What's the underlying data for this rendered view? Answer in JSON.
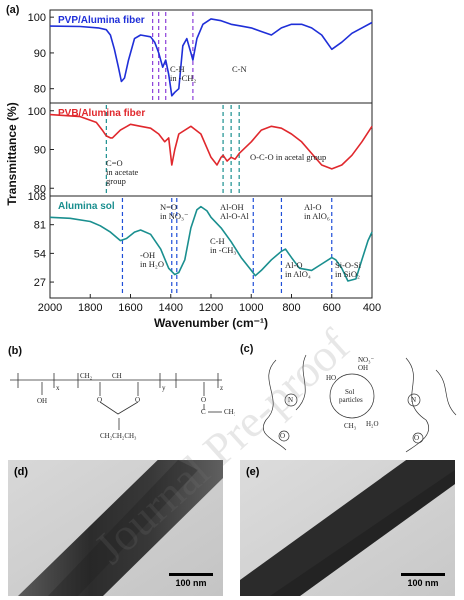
{
  "chart_data": [
    {
      "type": "line",
      "panel": "(a)",
      "xlabel": "Wavenumber (cm⁻¹)",
      "ylabel": "Transmittance (%)",
      "xlim": [
        2000,
        400
      ],
      "x_ticks": [
        2000,
        1800,
        1600,
        1400,
        1200,
        1000,
        800,
        600,
        400
      ],
      "subplots": [
        {
          "name": "PVP/Alumina fiber",
          "color": "#1f2fd8",
          "ylim": [
            76,
            102
          ],
          "y_ticks": [
            80,
            90,
            100
          ],
          "x": [
            2000,
            1850,
            1760,
            1720,
            1700,
            1680,
            1660,
            1645,
            1630,
            1610,
            1580,
            1550,
            1500,
            1480,
            1460,
            1440,
            1425,
            1410,
            1395,
            1380,
            1360,
            1340,
            1320,
            1300,
            1290,
            1270,
            1240,
            1200,
            1150,
            1100,
            1050,
            1000,
            950,
            900,
            850,
            800,
            750,
            700,
            650,
            600,
            550,
            500,
            450,
            400
          ],
          "y": [
            97.5,
            97.4,
            97,
            96.5,
            95,
            91,
            86,
            82,
            83,
            88,
            94,
            95,
            94.5,
            93,
            90,
            86,
            88,
            84,
            78,
            79,
            80,
            92,
            94,
            90,
            88,
            94,
            98,
            99.5,
            99,
            98,
            97.5,
            97,
            96,
            95,
            97,
            98,
            98,
            97,
            95,
            91,
            93,
            95.5,
            97,
            98.5
          ],
          "annotations": [
            {
              "text_lines": [
                "C-H",
                "in -CH₂"
              ],
              "x": 1460
            },
            {
              "text_lines": [
                "C-N"
              ],
              "x": 1290
            }
          ],
          "markers_x": [
            1490,
            1460,
            1425,
            1290
          ]
        },
        {
          "name": "PVB/Alumina fiber",
          "color": "#e0282d",
          "ylim": [
            78,
            102
          ],
          "y_ticks": [
            80,
            90,
            100
          ],
          "x": [
            2000,
            1850,
            1770,
            1740,
            1720,
            1700,
            1690,
            1650,
            1600,
            1550,
            1500,
            1460,
            1430,
            1410,
            1395,
            1380,
            1360,
            1300,
            1250,
            1200,
            1170,
            1150,
            1140,
            1120,
            1100,
            1080,
            1060,
            1000,
            950,
            900,
            850,
            800,
            750,
            700,
            650,
            600,
            550,
            500,
            450,
            400
          ],
          "y": [
            99,
            98.5,
            97,
            95,
            93.5,
            93,
            93,
            95,
            96.5,
            96,
            95.5,
            94,
            92,
            93,
            86,
            90,
            94,
            96,
            94,
            88,
            86,
            88,
            88.5,
            87,
            88,
            87.5,
            89,
            92,
            95,
            96,
            95.5,
            94,
            92,
            89,
            86,
            85,
            86,
            88.5,
            92,
            96
          ],
          "annotations": [
            {
              "text_lines": [
                "C=O",
                "in acetate",
                "group"
              ],
              "x": 1720
            },
            {
              "text_lines": [
                "O-C-O in acetal group"
              ],
              "x": 1130
            }
          ],
          "markers_x": [
            1720,
            1140,
            1100,
            1060
          ]
        },
        {
          "name": "Alumina sol",
          "color": "#1a8f8f",
          "ylim": [
            12,
            108
          ],
          "y_ticks": [
            27,
            54,
            81,
            108
          ],
          "x": [
            2000,
            1900,
            1800,
            1750,
            1700,
            1650,
            1620,
            1580,
            1550,
            1500,
            1450,
            1410,
            1380,
            1360,
            1330,
            1300,
            1270,
            1250,
            1220,
            1200,
            1150,
            1100,
            1050,
            1000,
            980,
            950,
            900,
            850,
            830,
            800,
            760,
            700,
            650,
            600,
            580,
            550,
            520,
            480,
            450,
            420,
            400
          ],
          "y": [
            88,
            87,
            84,
            80,
            74,
            66,
            68,
            74,
            76,
            72,
            58,
            40,
            34,
            36,
            48,
            78,
            95,
            98,
            94,
            88,
            78,
            65,
            50,
            38,
            33,
            38,
            48,
            56,
            58,
            50,
            40,
            38,
            44,
            50,
            48,
            40,
            28,
            30,
            48,
            66,
            74
          ],
          "annotations": [
            {
              "text_lines": [
                "N=O",
                "in NO₃⁻"
              ],
              "x": 1395
            },
            {
              "text_lines": [
                "Al-OH",
                "Al-O-Al"
              ],
              "x": 1120
            },
            {
              "text_lines": [
                "Al-O",
                "in AlO₆"
              ],
              "x": 640
            },
            {
              "text_lines": [
                "-OH",
                "in H₂O"
              ],
              "x": 1640
            },
            {
              "text_lines": [
                "C-H",
                "in -CH₃"
              ],
              "x": 1370
            },
            {
              "text_lines": [
                "Al-O",
                "in AlO₄"
              ],
              "x": 830
            },
            {
              "text_lines": [
                "Si-O-Si",
                "in SiO₂"
              ],
              "x": 560
            }
          ],
          "markers_x": [
            1640,
            1395,
            1370,
            990,
            850,
            600
          ]
        }
      ]
    }
  ],
  "panel_b": {
    "letter": "(b)",
    "labels": [
      "x",
      "y",
      "z",
      "OH",
      "CH₂",
      "CH",
      "O",
      "CH₂CH₂CH₃",
      "C",
      "CH₃"
    ]
  },
  "panel_c": {
    "letter": "(c)",
    "labels": [
      "Sol",
      "particles",
      "OH",
      "HO",
      "NO₃⁻",
      "H₂O",
      "CH₃",
      "N",
      "O"
    ]
  },
  "panel_d": {
    "letter": "(d)",
    "scale": "100 nm"
  },
  "panel_e": {
    "letter": "(e)",
    "scale": "100 nm"
  },
  "watermark": "Journal Pre-proof"
}
